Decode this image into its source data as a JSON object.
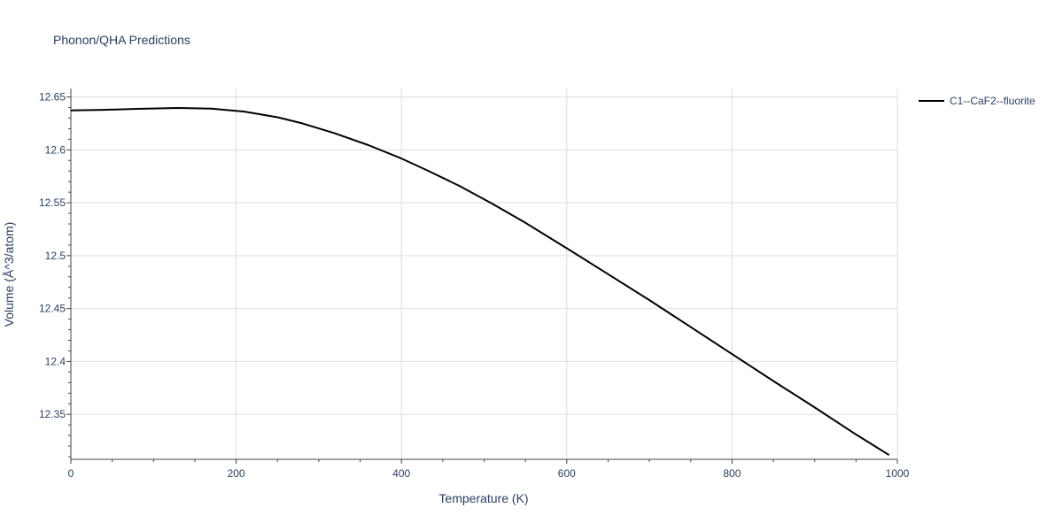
{
  "chart_data": {
    "type": "line",
    "title": "Phonon/QHA Predictions",
    "xlabel": "Temperature (K)",
    "ylabel": "Volume (Å^3/atom)",
    "xlim": [
      0,
      1000
    ],
    "ylim": [
      12.3075,
      12.658
    ],
    "x_ticks": [
      0,
      200,
      400,
      600,
      800,
      1000
    ],
    "x_tick_labels": [
      "0",
      "200",
      "400",
      "600",
      "800",
      "1000"
    ],
    "y_ticks": [
      12.35,
      12.4,
      12.45,
      12.5,
      12.55,
      12.6,
      12.65
    ],
    "y_tick_labels": [
      "12.35",
      "12.4",
      "12.45",
      "12.5",
      "12.55",
      "12.6",
      "12.65"
    ],
    "grid": true,
    "legend_position": "top-right outside",
    "colors": {
      "series": "#000000",
      "grid": "#dddddd",
      "text": "#2a3f5f"
    },
    "series": [
      {
        "name": "C1--CaF2--fluorite",
        "x": [
          0,
          40,
          80,
          130,
          170,
          210,
          250,
          280,
          320,
          360,
          400,
          430,
          470,
          510,
          550,
          600,
          650,
          700,
          750,
          800,
          850,
          900,
          950,
          990
        ],
        "y": [
          12.6373,
          12.6378,
          12.6388,
          12.6396,
          12.639,
          12.6362,
          12.6308,
          12.625,
          12.6155,
          12.6045,
          12.5918,
          12.581,
          12.566,
          12.549,
          12.531,
          12.507,
          12.4825,
          12.458,
          12.4325,
          12.407,
          12.3815,
          12.3565,
          12.331,
          12.3115
        ]
      }
    ]
  }
}
